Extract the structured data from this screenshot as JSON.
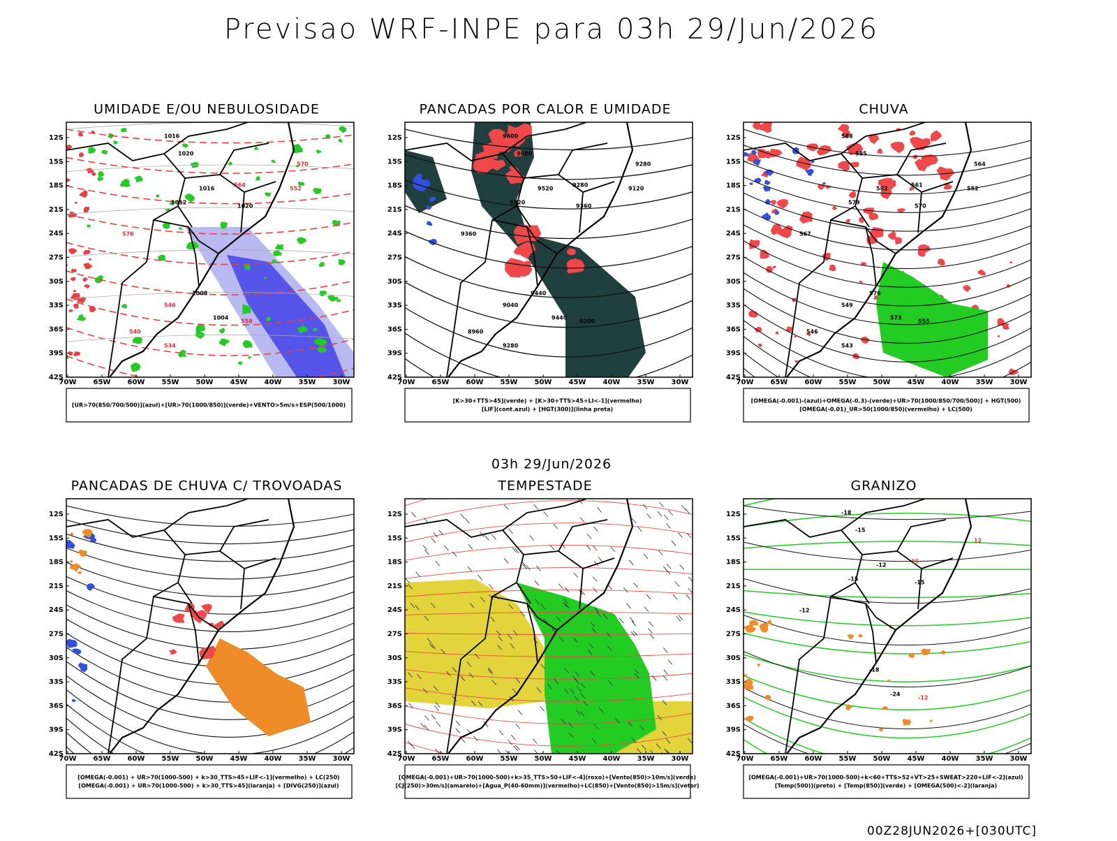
{
  "title": "Previsao WRF-INPE  para 03h 29/Jun/2026",
  "subtitle": "03h 29/Jun/2026",
  "footer": "00Z28JUN2026+[030UTC]",
  "lat_labels": [
    "12S",
    "15S",
    "18S",
    "21S",
    "24S",
    "27S",
    "30S",
    "33S",
    "36S",
    "39S",
    "42S"
  ],
  "lon_labels": [
    "70W",
    "65W",
    "60W",
    "55W",
    "50W",
    "45W",
    "40W",
    "35W",
    "30W"
  ],
  "panels": [
    {
      "title": "UMIDADE E/OU NEBULOSIDADE",
      "legend": [
        "[UR>70(850/700/500)](azul)+[UR>70(1000/850)](verde)+VENTO>5m/s+ESP(500/1000)"
      ],
      "contour_labels": [
        "1016",
        "1020",
        "1016",
        "1012",
        "1008",
        "1004",
        "1020",
        "576",
        "570",
        "564",
        "558",
        "552",
        "546",
        "540",
        "534"
      ]
    },
    {
      "title": "PANCADAS POR CALOR E UMIDADE",
      "legend": [
        "[K>30+TTS>45](verde) + [K>30+TTS>45+LI<-1](vermelho)",
        "[LIF](cont.azul) + [HGT(300)](linha preta)"
      ],
      "contour_labels": [
        "9600",
        "9600",
        "9520",
        "9520",
        "9440",
        "9440",
        "9360",
        "9360",
        "9280",
        "9280",
        "9200",
        "9120",
        "9040",
        "8960",
        "9280"
      ]
    },
    {
      "title": "CHUVA",
      "legend": [
        "[OMEGA(-0.001)-(azul)+OMEGA(-0.3)-(verde)+UR>70(1000/850/700/500)] + HGT(500)",
        "[OMEGA(-0.01)_UR>50(1000/850)(vermelho) + LC(500)"
      ],
      "contour_labels": [
        "588",
        "585",
        "582",
        "579",
        "576",
        "573",
        "570",
        "567",
        "564",
        "561",
        "555",
        "552",
        "549",
        "546",
        "543"
      ]
    },
    {
      "title": "PANCADAS DE CHUVA C/ TROVOADAS",
      "legend": [
        "[OMEGA(-0.001) + UR>70(1000-500) + k>30_TTS>45+LIF<-1](vermelho) + LC(250)",
        "[OMEGA(-0.001) + UR>70(1000-500) + k>30_TTS>45](laranja) + [DIVG(250)](azul)"
      ],
      "contour_labels": []
    },
    {
      "title": "TEMPESTADE",
      "legend": [
        "[OMEGA(-0.001)+UR>70(1000-500)+k>35_TTS>50+LIF<-4](roxo)+[Vento(850)>10m/s](verde)",
        "[CJ(250)>30m/s](amarelo)+[Agua_P(40-60mm)](vermelho)+LC(850)+[Vento(850)>15m/s](vetor)"
      ],
      "contour_labels": []
    },
    {
      "title": "GRANIZO",
      "legend": [
        "[OMEGA(-0.001)+UR>70(1000-500)+k<60+TTS>52+VT>25+SWEAT>220+LIF<-2](azul)",
        "[Temp(500)](preto) + [Temp(850)](verde) + [OMEGA(500)<-2](laranja)"
      ],
      "contour_labels": [
        "-18",
        "-15",
        "-12",
        "-15",
        "-18",
        "-24",
        "-15",
        "-12",
        "12",
        "15",
        "-12"
      ]
    }
  ]
}
